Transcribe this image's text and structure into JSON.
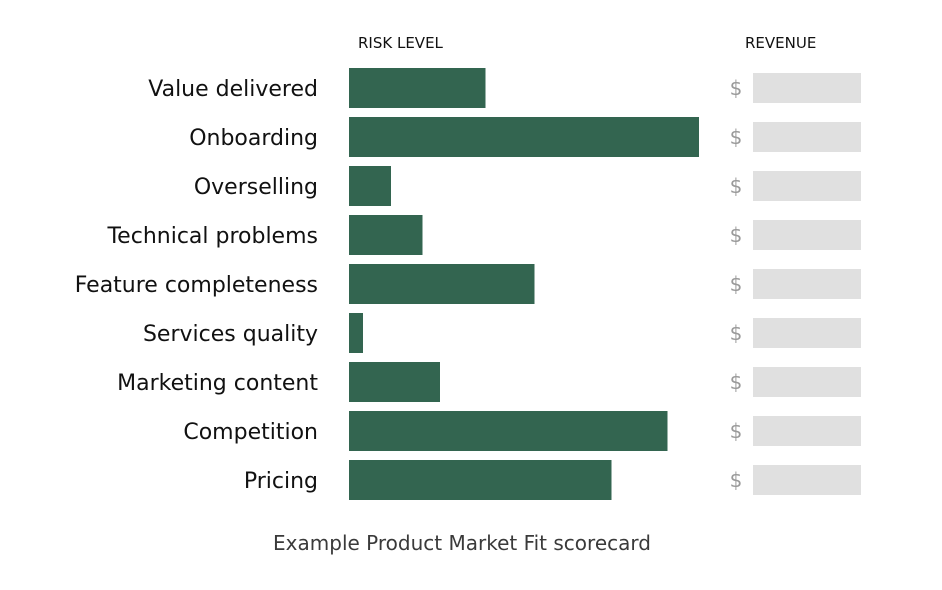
{
  "chart_data": {
    "type": "bar",
    "orientation": "horizontal",
    "title": "Example Product Market Fit scorecard",
    "risk_header": "RISK LEVEL",
    "revenue_header": "REVENUE",
    "categories": [
      "Value delivered",
      "Onboarding",
      "Overselling",
      "Technical problems",
      "Feature completeness",
      "Services quality",
      "Marketing content",
      "Competition",
      "Pricing"
    ],
    "values": [
      39,
      100,
      12,
      21,
      53,
      4,
      26,
      91,
      75
    ],
    "xlim": [
      0,
      100
    ],
    "revenue_symbol": "$",
    "colors": {
      "bar": "#336550",
      "revenue_box": "#e0e0e0",
      "revenue_symbol": "#9a9a9a"
    }
  }
}
